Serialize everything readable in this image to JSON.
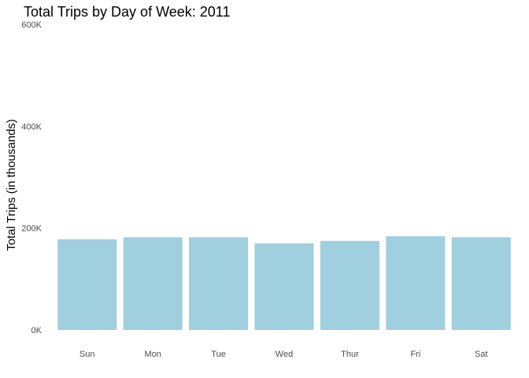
{
  "chart_data": {
    "type": "bar",
    "title": "Total Trips by Day of Week: 2011",
    "xlabel": "",
    "ylabel": "Total Trips (in thousands)",
    "categories": [
      "Sun",
      "Mon",
      "Tue",
      "Wed",
      "Thur",
      "Fri",
      "Sat"
    ],
    "values": [
      178000,
      182000,
      182000,
      170000,
      175000,
      184000,
      182000
    ],
    "ylim": [
      0,
      600000
    ],
    "yticks": [
      0,
      200000,
      400000,
      600000
    ],
    "ytick_labels": [
      "0K",
      "200K",
      "400K",
      "600K"
    ],
    "bar_color": "#a0cfe0",
    "grid": false,
    "legend": "none"
  }
}
